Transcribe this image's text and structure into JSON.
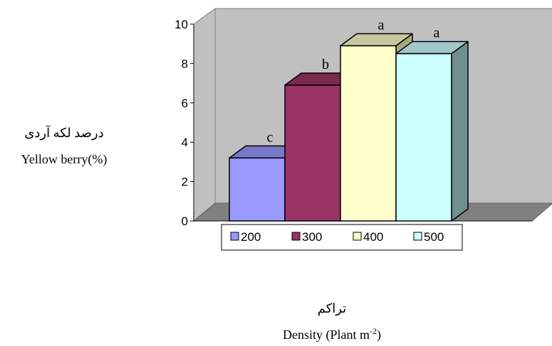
{
  "chart_data": {
    "type": "bar",
    "categories": [
      "200",
      "300",
      "400",
      "500"
    ],
    "values": [
      3.2,
      6.9,
      8.9,
      8.5
    ],
    "letters": [
      "c",
      "b",
      "a",
      "a"
    ],
    "colors": {
      "front": [
        "#9999ff",
        "#993366",
        "#ffffcc",
        "#ccffff"
      ],
      "top": [
        "#7878c8",
        "#7a2850",
        "#c8c8a0",
        "#a0c8c8"
      ],
      "side": [
        "#6060a8",
        "#5c1e3c",
        "#a8a880",
        "#709090"
      ]
    },
    "ylim": [
      0,
      10
    ],
    "yticks": [
      0,
      2,
      4,
      6,
      8,
      10
    ],
    "ylabel": {
      "persian": "درصد لکه آردی",
      "english": "Yellow berry(%)"
    },
    "xlabel": {
      "persian": "تراکم",
      "english": "Density (Plant m",
      "superscript": "-2",
      "suffix": ")"
    },
    "legend": [
      "200",
      "300",
      "400",
      "500"
    ],
    "legend_position": "bottom",
    "grid": false
  }
}
